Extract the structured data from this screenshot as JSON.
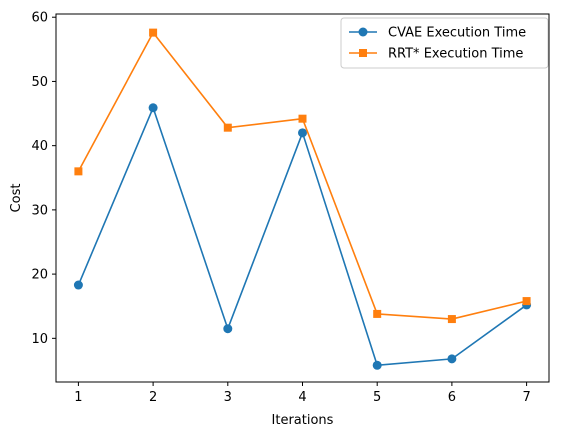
{
  "chart_data": {
    "type": "line",
    "title": "",
    "xlabel": "Iterations",
    "ylabel": "Cost",
    "x": [
      1,
      2,
      3,
      4,
      5,
      6,
      7
    ],
    "xlim": [
      0.7,
      7.3
    ],
    "ylim": [
      3.2,
      60.5
    ],
    "xticks": [
      1,
      2,
      3,
      4,
      5,
      6,
      7
    ],
    "yticks": [
      10,
      20,
      30,
      40,
      50,
      60
    ],
    "grid": false,
    "legend_position": "top-right",
    "series": [
      {
        "name": "CVAE Execution Time",
        "color": "#1f77b4",
        "marker": "circle",
        "values": [
          18.3,
          45.9,
          11.5,
          42.0,
          5.8,
          6.8,
          15.2
        ]
      },
      {
        "name": "RRT* Execution Time",
        "color": "#ff7f0e",
        "marker": "square",
        "values": [
          36.0,
          57.6,
          42.8,
          44.2,
          13.8,
          13.0,
          15.8
        ]
      }
    ]
  }
}
